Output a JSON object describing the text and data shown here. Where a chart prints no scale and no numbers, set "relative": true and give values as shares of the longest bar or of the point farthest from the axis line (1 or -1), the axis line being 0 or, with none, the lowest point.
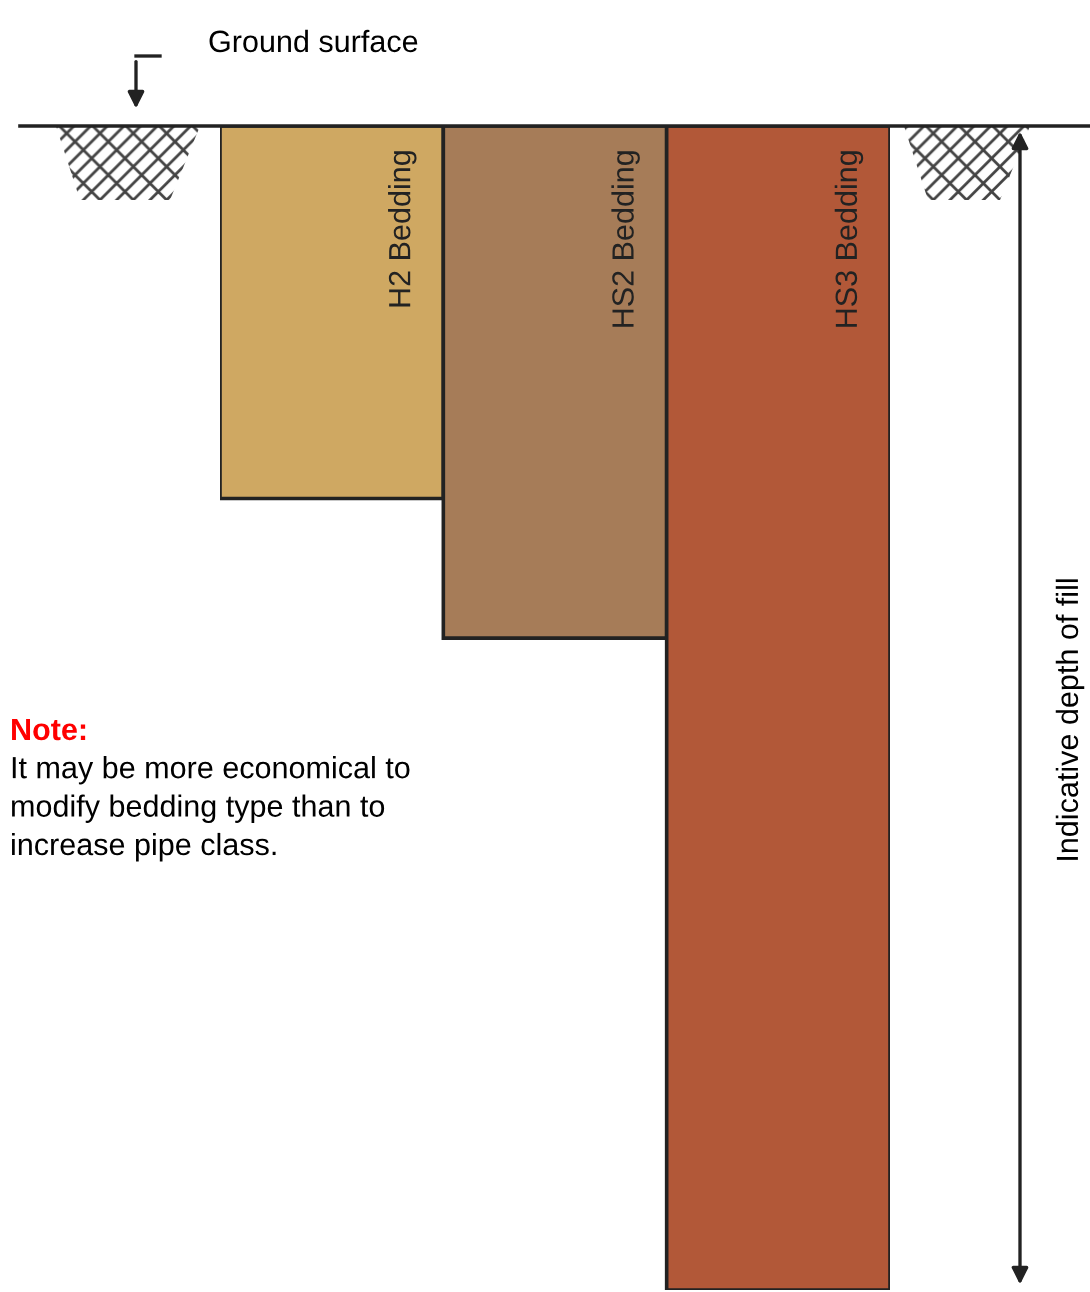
{
  "chart_data": {
    "type": "bar",
    "relative": true,
    "categories": [
      "H2 Bedding",
      "HS2 Bedding",
      "HS3 Bedding"
    ],
    "values": [
      -0.32,
      -0.44,
      -1
    ],
    "colors": [
      "#cfa862",
      "#a67c58",
      "#b25838"
    ],
    "ylabel": "Indicative depth of fill",
    "annotations": [
      "Ground surface",
      "Note:",
      "It may be more economical to\nmodify bedding type than to\nincrease pipe class."
    ]
  }
}
